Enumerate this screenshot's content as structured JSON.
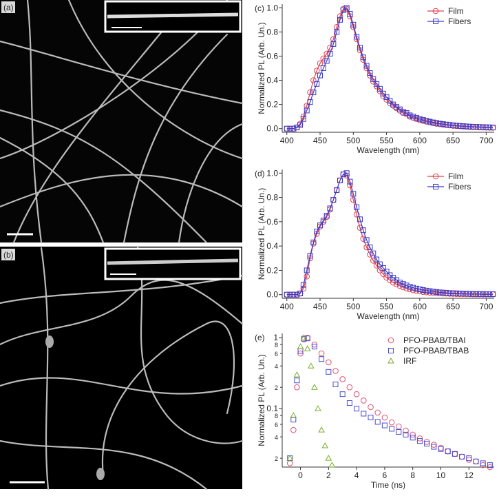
{
  "panels": [
    {
      "label": "(a)"
    },
    {
      "label": "(b)"
    }
  ],
  "chart_data": [
    {
      "type": "line",
      "panel_label": "(c)",
      "xlabel": "Wavelength (nm)",
      "ylabel": "Normalized PL (Arb. Un.)",
      "xlim": [
        393,
        712
      ],
      "ylim": [
        -0.03,
        1.03
      ],
      "xticks": [
        400,
        450,
        500,
        550,
        600,
        650,
        700
      ],
      "yticks": [
        {
          "value": 0,
          "label": "0.0"
        },
        0.2,
        0.4,
        0.6,
        0.8,
        {
          "value": 1,
          "label": "1.0"
        }
      ],
      "legend": "upper right",
      "x": [
        400,
        405,
        410,
        415,
        420,
        425,
        430,
        435,
        440,
        445,
        450,
        455,
        460,
        465,
        470,
        475,
        480,
        485,
        490,
        495,
        500,
        505,
        510,
        515,
        520,
        525,
        530,
        535,
        540,
        545,
        550,
        555,
        560,
        565,
        570,
        575,
        580,
        585,
        590,
        595,
        600,
        605,
        610,
        615,
        620,
        625,
        630,
        635,
        640,
        645,
        650,
        655,
        660,
        665,
        670,
        675,
        680,
        685,
        690,
        695,
        700,
        705,
        710
      ],
      "series": [
        {
          "name": "Film",
          "color": "#e0404e",
          "marker": "circle",
          "values": [
            0,
            0,
            0,
            0.01,
            0.04,
            0.1,
            0.19,
            0.3,
            0.4,
            0.48,
            0.54,
            0.58,
            0.62,
            0.67,
            0.74,
            0.84,
            0.93,
            0.99,
            0.99,
            0.93,
            0.84,
            0.74,
            0.65,
            0.57,
            0.5,
            0.44,
            0.39,
            0.35,
            0.31,
            0.27,
            0.24,
            0.21,
            0.19,
            0.17,
            0.15,
            0.13,
            0.12,
            0.1,
            0.09,
            0.08,
            0.07,
            0.065,
            0.058,
            0.052,
            0.046,
            0.041,
            0.037,
            0.033,
            0.03,
            0.027,
            0.024,
            0.022,
            0.02,
            0.018,
            0.016,
            0.014,
            0.013,
            0.012,
            0.011,
            0.01,
            0.009,
            0.008,
            0.007
          ]
        },
        {
          "name": "Fibers",
          "color": "#3a3ac8",
          "marker": "square",
          "values": [
            0,
            0,
            0,
            0.01,
            0.03,
            0.08,
            0.15,
            0.22,
            0.3,
            0.37,
            0.44,
            0.5,
            0.56,
            0.62,
            0.7,
            0.8,
            0.9,
            0.98,
            1,
            0.95,
            0.86,
            0.76,
            0.67,
            0.59,
            0.52,
            0.46,
            0.41,
            0.37,
            0.33,
            0.29,
            0.26,
            0.23,
            0.2,
            0.18,
            0.16,
            0.14,
            0.13,
            0.11,
            0.1,
            0.09,
            0.08,
            0.072,
            0.065,
            0.058,
            0.052,
            0.047,
            0.042,
            0.038,
            0.034,
            0.031,
            0.028,
            0.025,
            0.023,
            0.021,
            0.019,
            0.017,
            0.016,
            0.015,
            0.014,
            0.013,
            0.012,
            0.011,
            0.01
          ]
        }
      ]
    },
    {
      "type": "line",
      "panel_label": "(d)",
      "xlabel": "Wavelength (nm)",
      "ylabel": "Normalized PL (Arb. Un.)",
      "xlim": [
        393,
        712
      ],
      "ylim": [
        -0.03,
        1.03
      ],
      "xticks": [
        400,
        450,
        500,
        550,
        600,
        650,
        700
      ],
      "yticks": [
        {
          "value": 0,
          "label": "0.0"
        },
        0.2,
        0.4,
        0.6,
        0.8,
        {
          "value": 1,
          "label": "1.0"
        }
      ],
      "legend": "upper right",
      "x": [
        400,
        405,
        410,
        415,
        420,
        425,
        430,
        435,
        440,
        445,
        450,
        455,
        460,
        465,
        470,
        475,
        480,
        485,
        490,
        495,
        500,
        505,
        510,
        515,
        520,
        525,
        530,
        535,
        540,
        545,
        550,
        555,
        560,
        565,
        570,
        575,
        580,
        585,
        590,
        595,
        600,
        605,
        610,
        615,
        620,
        625,
        630,
        635,
        640,
        645,
        650,
        655,
        660,
        665,
        670,
        675,
        680,
        685,
        690,
        695,
        700,
        705,
        710
      ],
      "series": [
        {
          "name": "Film",
          "color": "#e0404e",
          "marker": "circle",
          "values": [
            0,
            0,
            0,
            0,
            0.01,
            0.05,
            0.15,
            0.3,
            0.42,
            0.5,
            0.56,
            0.6,
            0.64,
            0.7,
            0.78,
            0.86,
            0.94,
            0.99,
            0.98,
            0.9,
            0.78,
            0.66,
            0.55,
            0.46,
            0.39,
            0.33,
            0.28,
            0.24,
            0.2,
            0.17,
            0.14,
            0.12,
            0.1,
            0.085,
            0.072,
            0.061,
            0.052,
            0.044,
            0.037,
            0.032,
            0.027,
            0.023,
            0.02,
            0.017,
            0.015,
            0.013,
            0.011,
            0.01,
            0.009,
            0.008,
            0.007,
            0.006,
            0.005,
            0.005,
            0.004,
            0.004,
            0.003,
            0.003,
            0.003,
            0.002,
            0.002,
            0.002,
            0.002
          ]
        },
        {
          "name": "Fibers",
          "color": "#3a3ac8",
          "marker": "square",
          "values": [
            0,
            0,
            0,
            0,
            0.01,
            0.08,
            0.2,
            0.32,
            0.43,
            0.52,
            0.57,
            0.61,
            0.65,
            0.71,
            0.78,
            0.86,
            0.94,
            0.99,
            1,
            0.93,
            0.83,
            0.72,
            0.62,
            0.53,
            0.45,
            0.39,
            0.34,
            0.29,
            0.25,
            0.22,
            0.19,
            0.16,
            0.14,
            0.12,
            0.1,
            0.088,
            0.076,
            0.066,
            0.057,
            0.05,
            0.044,
            0.038,
            0.033,
            0.029,
            0.025,
            0.022,
            0.019,
            0.017,
            0.015,
            0.013,
            0.012,
            0.011,
            0.01,
            0.009,
            0.008,
            0.007,
            0.006,
            0.006,
            0.005,
            0.005,
            0.004,
            0.004,
            0.004
          ]
        }
      ]
    },
    {
      "type": "scatter",
      "panel_label": "(e)",
      "xlabel": "Time (ns)",
      "ylabel": "Normalized PL (Arb. Un.)",
      "log_y": true,
      "xlim": [
        -1.3,
        13.8
      ],
      "ylim": [
        0.015,
        1.15
      ],
      "xticks": [
        0,
        2,
        4,
        6,
        8,
        10,
        12
      ],
      "yticks": [
        1,
        {
          "value": 0.8,
          "label": "8"
        },
        {
          "value": 0.6,
          "label": "6"
        },
        {
          "value": 0.4,
          "label": "4"
        },
        {
          "value": 0.2,
          "label": "2"
        },
        0.1,
        {
          "value": 0.08,
          "label": "8"
        },
        {
          "value": 0.06,
          "label": "6"
        },
        {
          "value": 0.04,
          "label": "4"
        },
        {
          "value": 0.02,
          "label": "2"
        }
      ],
      "legend": "upper right",
      "series": [
        {
          "name": "PFO-PBAB/TBAI",
          "color": "#e0506e",
          "marker": "circle",
          "x": [
            -0.75,
            -0.5,
            -0.25,
            0,
            0.25,
            0.5,
            1,
            1.5,
            2,
            2.5,
            3,
            3.5,
            4,
            4.5,
            5,
            5.5,
            6,
            6.5,
            7,
            7.5,
            8,
            8.5,
            9,
            9.5,
            10,
            10.5,
            11,
            11.5,
            12,
            12.5,
            13,
            13.5
          ],
          "values": [
            0.017,
            0.05,
            0.2,
            0.6,
            0.95,
            1.0,
            0.8,
            0.6,
            0.45,
            0.34,
            0.26,
            0.2,
            0.16,
            0.13,
            0.105,
            0.088,
            0.075,
            0.064,
            0.056,
            0.049,
            0.043,
            0.038,
            0.034,
            0.031,
            0.028,
            0.025,
            0.023,
            0.021,
            0.019,
            0.018,
            0.016,
            0.015
          ]
        },
        {
          "name": "PFO-PBAB/TBAB",
          "color": "#4a4ad0",
          "marker": "square",
          "x": [
            -0.75,
            -0.5,
            -0.25,
            0,
            0.25,
            0.5,
            1,
            1.5,
            2,
            2.5,
            3,
            3.5,
            4,
            4.5,
            5,
            5.5,
            6,
            6.5,
            7,
            7.5,
            8,
            8.5,
            9,
            9.5,
            10,
            10.5,
            11,
            11.5,
            12,
            12.5,
            13,
            13.5
          ],
          "values": [
            0.02,
            0.07,
            0.25,
            0.65,
            0.97,
            0.98,
            0.75,
            0.5,
            0.33,
            0.22,
            0.16,
            0.12,
            0.1,
            0.085,
            0.075,
            0.065,
            0.058,
            0.052,
            0.047,
            0.043,
            0.039,
            0.035,
            0.032,
            0.029,
            0.027,
            0.025,
            0.023,
            0.021,
            0.02,
            0.018,
            0.017,
            0.016
          ]
        },
        {
          "name": "IRF",
          "color": "#7aac2c",
          "marker": "triangle",
          "x": [
            -0.75,
            -0.5,
            -0.25,
            0,
            0.25,
            0.5,
            0.75,
            1,
            1.25,
            1.5,
            1.75,
            2,
            2.25
          ],
          "values": [
            0.02,
            0.08,
            0.3,
            0.75,
            1,
            0.7,
            0.4,
            0.2,
            0.1,
            0.05,
            0.03,
            0.02,
            0.016
          ]
        }
      ]
    }
  ]
}
